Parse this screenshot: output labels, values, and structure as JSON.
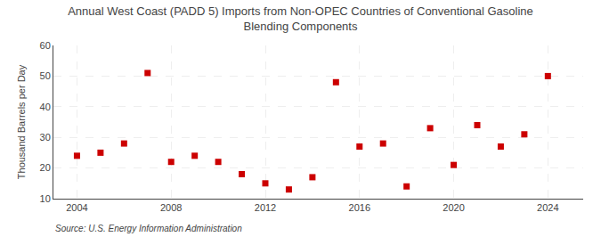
{
  "chart_data": {
    "type": "scatter",
    "title": "Annual West Coast (PADD 5) Imports from Non-OPEC Countries of Conventional Gasoline\nBlending Components",
    "ylabel": "Thousand Barrels per Day",
    "source": "Source: U.S. Energy Information Administration",
    "x": [
      2004,
      2005,
      2006,
      2007,
      2008,
      2009,
      2010,
      2011,
      2012,
      2013,
      2014,
      2015,
      2016,
      2017,
      2018,
      2019,
      2020,
      2021,
      2022,
      2023,
      2024
    ],
    "values": [
      24,
      25,
      28,
      51,
      22,
      24,
      22,
      18,
      15,
      13,
      17,
      48,
      27,
      28,
      14,
      33,
      21,
      34,
      27,
      31,
      50
    ],
    "color": "#cc0000",
    "marker": "square",
    "xlim": [
      2003,
      2025.5
    ],
    "xticks": [
      2004,
      2008,
      2012,
      2016,
      2020,
      2024
    ],
    "ylim": [
      10,
      60
    ],
    "yticks": [
      10,
      20,
      30,
      40,
      50,
      60
    ],
    "grid": true
  }
}
